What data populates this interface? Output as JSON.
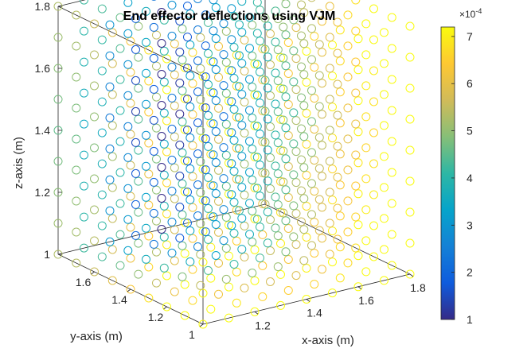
{
  "chart_data": {
    "type": "scatter3d",
    "title": "End effector deflections using VJM",
    "xlabel": "x-axis (m)",
    "ylabel": "y-axis (m)",
    "zlabel": "z-axis (m)",
    "xlim": [
      1,
      1.8
    ],
    "ylim": [
      1,
      1.8
    ],
    "zlim": [
      1,
      1.8
    ],
    "x_ticks": [
      "1.2",
      "1.4",
      "1.6",
      "1.8"
    ],
    "y_ticks": [
      "1",
      "1.2",
      "1.4",
      "1.6"
    ],
    "z_ticks": [
      "1",
      "1.2",
      "1.4",
      "1.6",
      "1.8"
    ],
    "grid": {
      "x": [
        1.0,
        1.1,
        1.2,
        1.3,
        1.4,
        1.5,
        1.6,
        1.7,
        1.8
      ],
      "y": [
        1.0,
        1.1,
        1.2,
        1.3,
        1.4,
        1.5,
        1.6,
        1.7,
        1.8
      ],
      "z": [
        1.0,
        1.1,
        1.2,
        1.3,
        1.4,
        1.5,
        1.6,
        1.7,
        1.8
      ]
    },
    "value_range": [
      1.0,
      7.2
    ],
    "value_model": "deflection (x1e-4) is smallest near the y-axis (x = 1.4, y = 1.8) and grows toward the front corner (x = 1.0..1.2, y = 1.0); read from marker colour",
    "colorbar": {
      "ticks": [
        "1",
        "2",
        "3",
        "4",
        "5",
        "6",
        "7"
      ],
      "exponent_label": "×10",
      "exponent_power": "-4",
      "colormap": "parula"
    },
    "marker": "open circle"
  }
}
